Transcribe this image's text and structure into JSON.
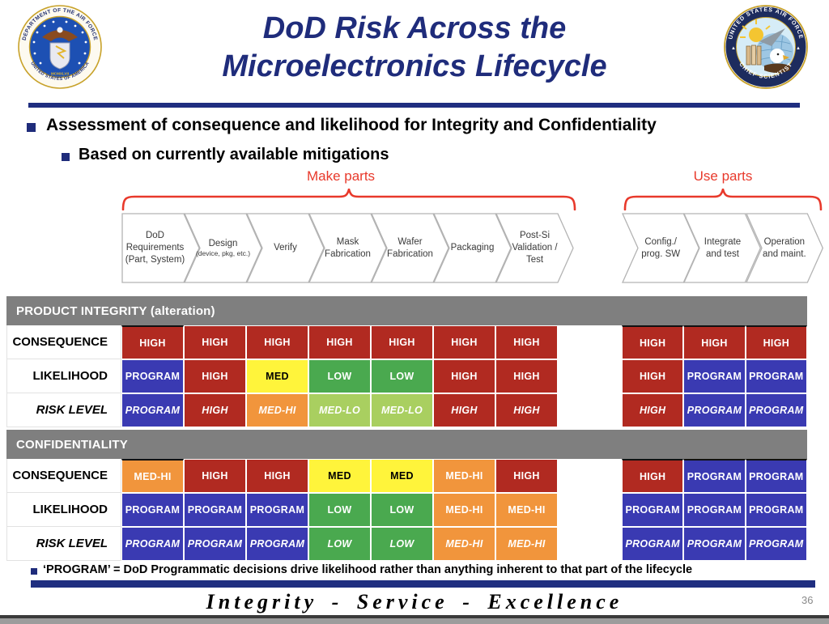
{
  "title": {
    "line1": "DoD Risk Across the",
    "line2": "Microelectronics Lifecycle"
  },
  "seals": {
    "left": {
      "top_text": "DEPARTMENT OF THE AIR FORCE",
      "bottom_text": "UNITED STATES OF AMERICA",
      "center_text": "MCMXLVII"
    },
    "right": {
      "top_text": "UNITED STATES AIR FORCE",
      "bottom_text": "CHIEF SCIENTIST"
    }
  },
  "bullets": {
    "main": "Assessment of consequence and likelihood for Integrity and Confidentiality",
    "sub": "Based on currently available mitigations"
  },
  "phase_groups": {
    "make": "Make parts",
    "use": "Use parts"
  },
  "lifecycle": {
    "make_stages": [
      {
        "main": [
          "DoD",
          "Requirements",
          "(Part, System)"
        ],
        "small": []
      },
      {
        "main": [
          "Design"
        ],
        "small": [
          "(device, pkg, etc.)"
        ]
      },
      {
        "main": [
          "Verify"
        ],
        "small": []
      },
      {
        "main": [
          "Mask",
          "Fabrication"
        ],
        "small": []
      },
      {
        "main": [
          "Wafer",
          "Fabrication"
        ],
        "small": []
      },
      {
        "main": [
          "Packaging"
        ],
        "small": []
      },
      {
        "main": [
          "Post-Si",
          "Validation /",
          "Test"
        ],
        "small": []
      }
    ],
    "use_stages": [
      {
        "main": [
          "Config./",
          "prog. SW"
        ],
        "small": []
      },
      {
        "main": [
          "Integrate",
          "and test"
        ],
        "small": []
      },
      {
        "main": [
          "Operation",
          "and maint."
        ],
        "small": []
      }
    ]
  },
  "risk_table": {
    "level_colors": {
      "HIGH": {
        "bg": "#B12A21",
        "fg": "#FFFFFF"
      },
      "PROGRAM": {
        "bg": "#3A3AB2",
        "fg": "#FFFFFF"
      },
      "MED": {
        "bg": "#FFF43B",
        "fg": "#000000"
      },
      "LOW": {
        "bg": "#4AA94F",
        "fg": "#FFFFFF"
      },
      "MED-HI": {
        "bg": "#F1953C",
        "fg": "#FFFFFF"
      },
      "MED-LO": {
        "bg": "#A9CF60",
        "fg": "#FFFFFF"
      }
    },
    "sections": [
      {
        "band": "PRODUCT INTEGRITY (alteration)",
        "rows": [
          {
            "label": "CONSEQUENCE",
            "italic": false,
            "make": [
              "HIGH",
              "HIGH",
              "HIGH",
              "HIGH",
              "HIGH",
              "HIGH",
              "HIGH"
            ],
            "use": [
              "HIGH",
              "HIGH",
              "HIGH"
            ]
          },
          {
            "label": "LIKELIHOOD",
            "italic": false,
            "make": [
              "PROGRAM",
              "HIGH",
              "MED",
              "LOW",
              "LOW",
              "HIGH",
              "HIGH"
            ],
            "use": [
              "HIGH",
              "PROGRAM",
              "PROGRAM"
            ]
          },
          {
            "label": "RISK LEVEL",
            "italic": true,
            "make": [
              "PROGRAM",
              "HIGH",
              "MED-HI",
              "MED-LO",
              "MED-LO",
              "HIGH",
              "HIGH"
            ],
            "use": [
              "HIGH",
              "PROGRAM",
              "PROGRAM"
            ]
          }
        ]
      },
      {
        "band": "CONFIDENTIALITY",
        "rows": [
          {
            "label": "CONSEQUENCE",
            "italic": false,
            "make": [
              "MED-HI",
              "HIGH",
              "HIGH",
              "MED",
              "MED",
              "MED-HI",
              "HIGH"
            ],
            "use": [
              "HIGH",
              "PROGRAM",
              "PROGRAM"
            ]
          },
          {
            "label": "LIKELIHOOD",
            "italic": false,
            "make": [
              "PROGRAM",
              "PROGRAM",
              "PROGRAM",
              "LOW",
              "LOW",
              "MED-HI",
              "MED-HI"
            ],
            "use": [
              "PROGRAM",
              "PROGRAM",
              "PROGRAM"
            ]
          },
          {
            "label": "RISK LEVEL",
            "italic": true,
            "make": [
              "PROGRAM",
              "PROGRAM",
              "PROGRAM",
              "LOW",
              "LOW",
              "MED-HI",
              "MED-HI"
            ],
            "use": [
              "PROGRAM",
              "PROGRAM",
              "PROGRAM"
            ]
          }
        ]
      }
    ]
  },
  "note": {
    "text": "‘PROGRAM’ = DoD Programmatic decisions drive likelihood rather than anything inherent to that part of the lifecycle"
  },
  "footer": {
    "motto": "Integrity - Service - Excellence",
    "page_number": "36"
  },
  "colors": {
    "navy": "#1F2C7B",
    "red_accent": "#E8392B",
    "band_gray": "#7F7F7F"
  }
}
